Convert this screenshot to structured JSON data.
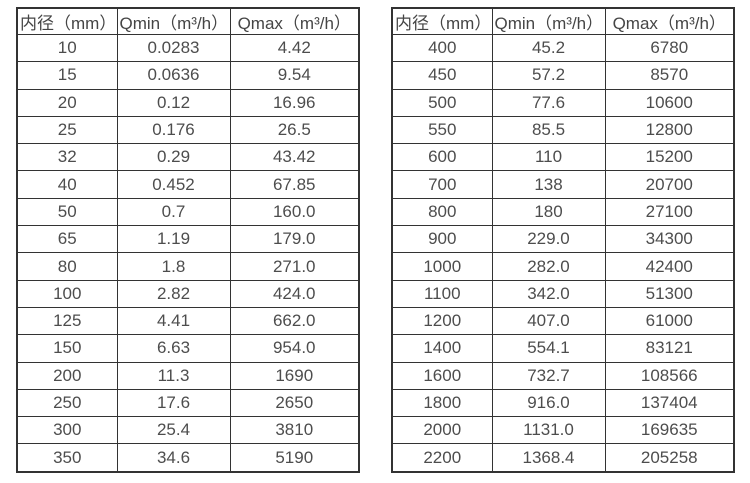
{
  "page": {
    "background_color": "#ffffff",
    "border_color": "#333333",
    "text_color": "#4a4a4a"
  },
  "tables": [
    {
      "name": "flow-table-small-diameters",
      "headers": [
        "内径（mm）",
        "Qmin（m³/h）",
        "Qmax（m³/h）"
      ],
      "rows": [
        [
          "10",
          "0.0283",
          "4.42"
        ],
        [
          "15",
          "0.0636",
          "9.54"
        ],
        [
          "20",
          "0.12",
          "16.96"
        ],
        [
          "25",
          "0.176",
          "26.5"
        ],
        [
          "32",
          "0.29",
          "43.42"
        ],
        [
          "40",
          "0.452",
          "67.85"
        ],
        [
          "50",
          "0.7",
          "160.0"
        ],
        [
          "65",
          "1.19",
          "179.0"
        ],
        [
          "80",
          "1.8",
          "271.0"
        ],
        [
          "100",
          "2.82",
          "424.0"
        ],
        [
          "125",
          "4.41",
          "662.0"
        ],
        [
          "150",
          "6.63",
          "954.0"
        ],
        [
          "200",
          "11.3",
          "1690"
        ],
        [
          "250",
          "17.6",
          "2650"
        ],
        [
          "300",
          "25.4",
          "3810"
        ],
        [
          "350",
          "34.6",
          "5190"
        ]
      ]
    },
    {
      "name": "flow-table-large-diameters",
      "headers": [
        "内径（mm）",
        "Qmin（m³/h）",
        "Qmax（m³/h）"
      ],
      "rows": [
        [
          "400",
          "45.2",
          "6780"
        ],
        [
          "450",
          "57.2",
          "8570"
        ],
        [
          "500",
          "77.6",
          "10600"
        ],
        [
          "550",
          "85.5",
          "12800"
        ],
        [
          "600",
          "110",
          "15200"
        ],
        [
          "700",
          "138",
          "20700"
        ],
        [
          "800",
          "180",
          "27100"
        ],
        [
          "900",
          "229.0",
          "34300"
        ],
        [
          "1000",
          "282.0",
          "42400"
        ],
        [
          "1100",
          "342.0",
          "51300"
        ],
        [
          "1200",
          "407.0",
          "61000"
        ],
        [
          "1400",
          "554.1",
          "83121"
        ],
        [
          "1600",
          "732.7",
          "108566"
        ],
        [
          "1800",
          "916.0",
          "137404"
        ],
        [
          "2000",
          "1131.0",
          "169635"
        ],
        [
          "2200",
          "1368.4",
          "205258"
        ]
      ]
    }
  ]
}
